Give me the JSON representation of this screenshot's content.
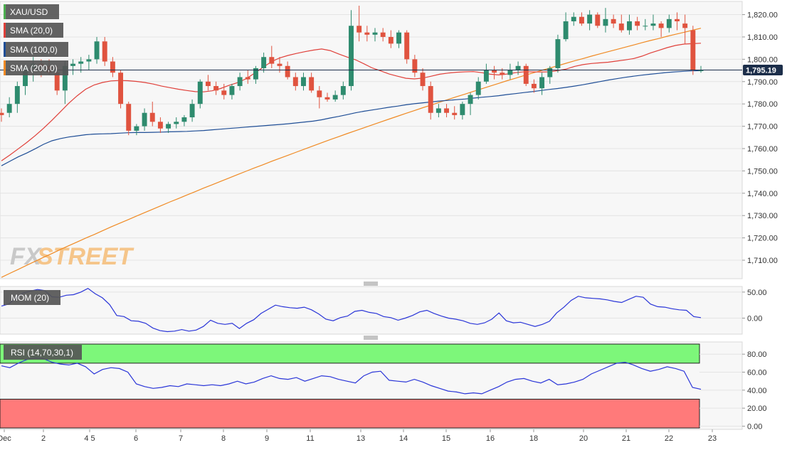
{
  "watermark": {
    "prefix": "FX",
    "suffix": "STREET"
  },
  "chart_data": [
    {
      "type": "candlestick",
      "pane": "price",
      "symbol_label": "XAU/USD",
      "indicator_labels": [
        "SMA (20,0)",
        "SMA (100,0)",
        "SMA (200,0)"
      ],
      "colors": {
        "up": "#2e8b6e",
        "down": "#e0533f",
        "sma20": "#e0403a",
        "sma100": "#1f4e96",
        "sma200": "#f08a24",
        "last_price_bg": "#1c2e4a"
      },
      "y_ticks": [
        1710,
        1720,
        1730,
        1740,
        1750,
        1760,
        1770,
        1780,
        1790,
        1800,
        1810,
        1820
      ],
      "y_tick_labels": [
        "1,710.00",
        "1,720.00",
        "1,730.00",
        "1,740.00",
        "1,750.00",
        "1,760.00",
        "1,770.00",
        "1,780.00",
        "1,790.00",
        "1,800.00",
        "1,810.00",
        "1,820.00"
      ],
      "ylim": [
        1703,
        1824
      ],
      "last_price": 1795.19,
      "last_price_label": "1,795.19",
      "candles": [
        [
          1776,
          1778,
          1772,
          1775
        ],
        [
          1776,
          1783,
          1774,
          1780
        ],
        [
          1780,
          1790,
          1776,
          1788
        ],
        [
          1788,
          1798,
          1784,
          1796
        ],
        [
          1796,
          1801,
          1790,
          1798
        ],
        [
          1798,
          1800,
          1792,
          1797
        ],
        [
          1797,
          1800,
          1793,
          1794
        ],
        [
          1794,
          1797,
          1784,
          1786
        ],
        [
          1786,
          1799,
          1780,
          1797
        ],
        [
          1797,
          1800,
          1793,
          1798
        ],
        [
          1798,
          1801,
          1794,
          1799
        ],
        [
          1799,
          1802,
          1795,
          1800
        ],
        [
          1800,
          1810,
          1798,
          1808
        ],
        [
          1808,
          1810,
          1797,
          1799
        ],
        [
          1799,
          1801,
          1792,
          1794
        ],
        [
          1794,
          1795,
          1778,
          1780
        ],
        [
          1780,
          1781,
          1766,
          1768
        ],
        [
          1768,
          1771,
          1766,
          1770
        ],
        [
          1770,
          1778,
          1768,
          1776
        ],
        [
          1776,
          1781,
          1770,
          1772
        ],
        [
          1772,
          1774,
          1767,
          1769
        ],
        [
          1769,
          1772,
          1767,
          1771
        ],
        [
          1771,
          1774,
          1769,
          1772
        ],
        [
          1772,
          1775,
          1770,
          1774
        ],
        [
          1774,
          1782,
          1772,
          1780
        ],
        [
          1780,
          1791,
          1778,
          1790
        ],
        [
          1790,
          1793,
          1786,
          1788
        ],
        [
          1788,
          1790,
          1784,
          1786
        ],
        [
          1786,
          1789,
          1782,
          1784
        ],
        [
          1784,
          1789,
          1782,
          1788
        ],
        [
          1788,
          1794,
          1786,
          1792
        ],
        [
          1792,
          1795,
          1789,
          1791
        ],
        [
          1791,
          1797,
          1789,
          1796
        ],
        [
          1796,
          1803,
          1794,
          1801
        ],
        [
          1801,
          1806,
          1796,
          1798
        ],
        [
          1798,
          1801,
          1794,
          1797
        ],
        [
          1797,
          1799,
          1791,
          1792
        ],
        [
          1792,
          1794,
          1786,
          1788
        ],
        [
          1788,
          1794,
          1786,
          1792
        ],
        [
          1792,
          1794,
          1785,
          1786
        ],
        [
          1786,
          1788,
          1778,
          1783
        ],
        [
          1783,
          1785,
          1781,
          1782
        ],
        [
          1782,
          1786,
          1781,
          1784
        ],
        [
          1784,
          1790,
          1782,
          1788
        ],
        [
          1788,
          1822,
          1786,
          1815
        ],
        [
          1815,
          1824,
          1808,
          1812
        ],
        [
          1812,
          1815,
          1808,
          1811
        ],
        [
          1811,
          1814,
          1808,
          1812
        ],
        [
          1812,
          1814,
          1808,
          1810
        ],
        [
          1810,
          1813,
          1805,
          1807
        ],
        [
          1807,
          1813,
          1805,
          1812
        ],
        [
          1812,
          1813,
          1798,
          1800
        ],
        [
          1800,
          1802,
          1792,
          1794
        ],
        [
          1794,
          1796,
          1786,
          1788
        ],
        [
          1788,
          1790,
          1773,
          1776
        ],
        [
          1776,
          1780,
          1774,
          1778
        ],
        [
          1778,
          1780,
          1774,
          1776
        ],
        [
          1776,
          1779,
          1773,
          1775
        ],
        [
          1775,
          1781,
          1773,
          1780
        ],
        [
          1780,
          1785,
          1775,
          1784
        ],
        [
          1784,
          1792,
          1782,
          1790
        ],
        [
          1790,
          1798,
          1789,
          1795
        ],
        [
          1795,
          1797,
          1791,
          1794
        ],
        [
          1794,
          1796,
          1791,
          1793
        ],
        [
          1793,
          1798,
          1791,
          1795
        ],
        [
          1795,
          1799,
          1793,
          1797
        ],
        [
          1797,
          1798,
          1788,
          1789
        ],
        [
          1789,
          1791,
          1785,
          1787
        ],
        [
          1787,
          1794,
          1784,
          1792
        ],
        [
          1792,
          1797,
          1789,
          1796
        ],
        [
          1796,
          1811,
          1794,
          1809
        ],
        [
          1809,
          1821,
          1808,
          1817
        ],
        [
          1817,
          1821,
          1815,
          1819
        ],
        [
          1819,
          1821,
          1815,
          1816
        ],
        [
          1816,
          1822,
          1813,
          1820
        ],
        [
          1820,
          1821,
          1814,
          1815
        ],
        [
          1815,
          1823,
          1812,
          1818
        ],
        [
          1818,
          1820,
          1814,
          1816
        ],
        [
          1816,
          1820,
          1812,
          1813
        ],
        [
          1813,
          1820,
          1811,
          1817
        ],
        [
          1817,
          1819,
          1813,
          1815
        ],
        [
          1815,
          1818,
          1813,
          1815
        ],
        [
          1815,
          1820,
          1813,
          1816
        ],
        [
          1816,
          1817,
          1810,
          1814
        ],
        [
          1814,
          1820,
          1812,
          1818
        ],
        [
          1818,
          1821,
          1813,
          1817
        ],
        [
          1816,
          1820,
          1807,
          1814
        ],
        [
          1813,
          1815,
          1793,
          1795
        ],
        [
          1795,
          1797,
          1794,
          1795
        ]
      ],
      "sma20": [
        1754.5,
        1757.1,
        1759.9,
        1762.7,
        1765.8,
        1769.1,
        1772.7,
        1776.5,
        1780.3,
        1783.7,
        1786.6,
        1788.5,
        1789.6,
        1790.3,
        1790.5,
        1790.4,
        1790.1,
        1789.6,
        1788.9,
        1788.0,
        1787.3,
        1786.6,
        1786.0,
        1785.5,
        1785.4,
        1785.9,
        1786.9,
        1788.3,
        1789.5,
        1791.2,
        1793.7,
        1796.3,
        1798.8,
        1800.6,
        1801.7,
        1802.6,
        1803.4,
        1804.1,
        1804.6,
        1803.9,
        1802.4,
        1801.0,
        1799.8,
        1798.0,
        1796.1,
        1794.8,
        1793.4,
        1792.4,
        1791.5,
        1791.2,
        1791.6,
        1792.4,
        1793.3,
        1793.8,
        1794.2,
        1794.4,
        1794.5,
        1794.0,
        1793.3,
        1793.0,
        1793.4,
        1794.0,
        1794.4,
        1794.4,
        1794.3,
        1794.4,
        1794.9,
        1795.6,
        1796.8,
        1797.6,
        1798.1,
        1798.4,
        1798.7,
        1799.2,
        1799.7,
        1800.3,
        1801.4,
        1802.8,
        1804.0,
        1805.2,
        1806.2,
        1806.8,
        1807.0,
        1807.2
      ],
      "sma100": [
        1752.3,
        1754.3,
        1756.3,
        1758.0,
        1759.9,
        1761.9,
        1763.5,
        1764.5,
        1765.2,
        1765.7,
        1766.2,
        1766.5,
        1766.6,
        1766.7,
        1766.9,
        1767.1,
        1767.2,
        1767.2,
        1767.3,
        1767.4,
        1767.5,
        1767.6,
        1767.7,
        1767.9,
        1768.1,
        1768.4,
        1768.7,
        1769.0,
        1769.3,
        1769.6,
        1769.9,
        1770.2,
        1770.5,
        1770.8,
        1771.1,
        1771.5,
        1771.9,
        1772.3,
        1772.9,
        1773.7,
        1774.4,
        1775.2,
        1776.0,
        1776.7,
        1777.3,
        1777.9,
        1778.5,
        1779.0,
        1779.6,
        1780.1,
        1780.5,
        1780.9,
        1781.3,
        1781.6,
        1781.9,
        1782.2,
        1782.6,
        1783.0,
        1783.3,
        1783.7,
        1784.2,
        1784.6,
        1785.1,
        1785.5,
        1786.0,
        1786.5,
        1786.9,
        1787.4,
        1788.0,
        1788.6,
        1789.3,
        1790.0,
        1790.7,
        1791.3,
        1791.9,
        1792.4,
        1792.9,
        1793.3,
        1793.7,
        1794.1,
        1794.4,
        1794.6,
        1794.8,
        1794.9
      ],
      "sma200": [
        1702.3,
        1704.1,
        1705.9,
        1707.7,
        1709.5,
        1711.3,
        1713.0,
        1714.8,
        1716.5,
        1718.2,
        1719.9,
        1721.5,
        1723.2,
        1724.9,
        1726.5,
        1728.1,
        1729.7,
        1731.3,
        1732.9,
        1734.5,
        1736.1,
        1737.6,
        1739.2,
        1740.7,
        1742.3,
        1743.8,
        1745.3,
        1746.8,
        1748.3,
        1749.8,
        1751.3,
        1752.7,
        1754.2,
        1755.6,
        1757.0,
        1758.4,
        1759.8,
        1761.2,
        1762.6,
        1764.0,
        1765.3,
        1766.7,
        1768.0,
        1769.3,
        1770.6,
        1771.9,
        1773.2,
        1774.5,
        1775.8,
        1777.0,
        1778.3,
        1779.5,
        1780.8,
        1782.0,
        1783.2,
        1784.4,
        1785.6,
        1786.8,
        1788.0,
        1789.2,
        1790.4,
        1791.5,
        1792.7,
        1793.8,
        1794.9,
        1796.0,
        1797.1,
        1798.2,
        1799.3,
        1800.3,
        1801.4,
        1802.4,
        1803.4,
        1804.4,
        1805.4,
        1806.4,
        1807.4,
        1808.4,
        1809.3,
        1810.3,
        1811.2,
        1812.1,
        1813.0,
        1813.9
      ]
    },
    {
      "type": "line",
      "pane": "momentum",
      "label": "MOM (20)",
      "color": "#2a35d8",
      "y_ticks": [
        0,
        50
      ],
      "y_tick_labels": [
        "0.00",
        "50.00"
      ],
      "ylim": [
        -28,
        58
      ],
      "values": [
        23,
        27,
        38,
        48,
        52,
        55,
        53,
        41,
        40,
        44,
        45,
        50,
        57,
        47,
        39,
        26,
        5,
        3,
        -5,
        -6,
        -10,
        -19,
        -24,
        -26,
        -25,
        -22,
        -25,
        -23,
        -16,
        -4,
        -10,
        -12,
        -10,
        -20,
        -10,
        -3,
        9,
        17,
        25,
        22,
        20,
        19,
        21,
        16,
        8,
        -2,
        -5,
        1,
        4,
        13,
        15,
        11,
        9,
        3,
        1,
        -4,
        0,
        5,
        12,
        15,
        9,
        4,
        0,
        -2,
        -5,
        -10,
        -12,
        -9,
        -2,
        10,
        -5,
        -9,
        -8,
        -12,
        -16,
        -12,
        -6,
        10,
        21,
        34,
        42,
        39,
        38,
        37,
        35,
        32,
        30,
        36,
        42,
        40,
        27,
        22,
        21,
        18,
        16,
        15,
        3,
        1
      ],
      "x_is_index": true
    },
    {
      "type": "line",
      "pane": "rsi",
      "label": "RSI (14,70,30,1)",
      "color": "#2a35d8",
      "y_ticks": [
        0,
        20,
        40,
        60,
        80
      ],
      "y_tick_labels": [
        "0.00",
        "20.00",
        "40.00",
        "60.00",
        "80.00"
      ],
      "ylim": [
        -2,
        92
      ],
      "zones": {
        "overbought": 70,
        "oversold": 30,
        "overbought_color": "#7df77a",
        "oversold_color": "#ff7a7a"
      },
      "values": [
        67,
        65,
        70,
        74,
        76,
        75,
        71,
        69,
        68,
        70,
        66,
        58,
        63,
        65,
        64,
        60,
        47,
        44,
        42,
        43,
        45,
        44,
        47,
        46,
        45,
        46,
        45,
        47,
        50,
        47,
        49,
        53,
        56,
        53,
        52,
        54,
        50,
        53,
        56,
        55,
        52,
        50,
        48,
        56,
        60,
        61,
        51,
        50,
        49,
        52,
        49,
        45,
        42,
        39,
        38,
        36,
        37,
        36,
        40,
        44,
        49,
        52,
        53,
        50,
        48,
        52,
        46,
        47,
        49,
        52,
        58,
        62,
        66,
        70,
        71,
        68,
        64,
        61,
        63,
        66,
        64,
        61,
        43,
        41
      ],
      "x_is_index": true
    }
  ],
  "x_axis": {
    "labels": [
      "Dec",
      "2",
      "4 5",
      "6",
      "7",
      "8",
      "9",
      "11",
      "13",
      "14",
      "15",
      "16",
      "18",
      "20",
      "21",
      "22",
      "23"
    ],
    "label_positions_index": [
      0,
      8,
      16,
      24,
      31,
      39,
      46,
      54,
      62,
      69,
      77,
      84,
      92,
      100,
      108,
      115,
      124
    ]
  }
}
